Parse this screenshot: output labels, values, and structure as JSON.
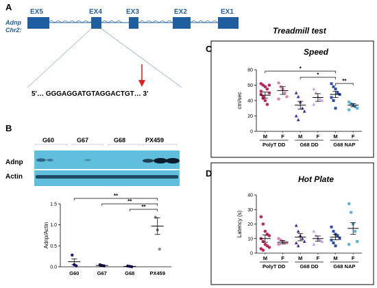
{
  "panels": {
    "A": {
      "label": "A",
      "species": "Adnp",
      "chromosome": "Chr2:",
      "exons": [
        "EX5",
        "EX4",
        "EX3",
        "EX2",
        "EX1"
      ],
      "sequence": "5'… GGGAGGATGTAGGACTGT… 3'",
      "colors": {
        "exon": "#1f5fa0",
        "cut_arrow": "#e02020"
      }
    },
    "B": {
      "label": "B",
      "blot_groups": [
        "G60",
        "G67",
        "G68",
        "PX459"
      ],
      "blot_rows": [
        "Adnp",
        "Actin"
      ],
      "colors": {
        "blot": "#6ec6e0"
      }
    },
    "C": {
      "label": "C",
      "heading": "Treadmill test"
    },
    "D": {
      "label": "D"
    }
  },
  "chart_data": [
    {
      "type": "scatter",
      "title": "",
      "ylabel": "Adnp/Actin",
      "ylim": [
        0.0,
        1.5
      ],
      "yticks": [
        "0.0",
        "0.5",
        "1.0",
        "1.5"
      ],
      "categories": [
        "G60",
        "G67",
        "G68",
        "PX459"
      ],
      "means": [
        0.12,
        0.03,
        0.01,
        0.97
      ],
      "sem": [
        0.07,
        0.02,
        0.01,
        0.2
      ],
      "points": [
        [
          0.28,
          0.05,
          0.02
        ],
        [
          0.05,
          0.03,
          0.02
        ],
        [
          0.02,
          0.01,
          0.0
        ],
        [
          1.18,
          0.88,
          0.42
        ]
      ],
      "significance": [
        {
          "from": "G60",
          "to": "PX459",
          "label": "**"
        },
        {
          "from": "G67",
          "to": "PX459",
          "label": "**"
        },
        {
          "from": "G68",
          "to": "PX459",
          "label": "**"
        }
      ],
      "colors": {
        "point": "#1a1a8a",
        "point_px": "#8a8a8a"
      }
    },
    {
      "type": "scatter",
      "title": "Speed",
      "ylabel": "cm/sec",
      "ylim": [
        0,
        80
      ],
      "yticks": [
        "0",
        "20",
        "40",
        "60",
        "80"
      ],
      "categories": [
        "M",
        "F",
        "M",
        "F",
        "M",
        "F"
      ],
      "groups": [
        "PolyT DD",
        "G68 DD",
        "G68 NAP"
      ],
      "means": [
        47,
        53,
        34,
        44,
        48,
        34
      ],
      "sem": [
        4,
        5,
        5,
        5,
        4,
        2
      ],
      "points": [
        [
          62,
          60,
          58,
          55,
          50,
          48,
          45,
          40,
          35,
          60,
          52,
          43
        ],
        [
          63,
          58,
          55,
          50,
          45,
          42
        ],
        [
          50,
          45,
          38,
          30,
          26,
          20,
          15
        ],
        [
          55,
          50,
          45,
          42,
          40,
          35
        ],
        [
          62,
          58,
          55,
          50,
          48,
          44,
          40,
          30
        ],
        [
          38,
          36,
          34,
          32,
          30,
          28
        ]
      ],
      "significance": [
        {
          "from": 0,
          "to": 4,
          "label": "*",
          "level": 0
        },
        {
          "from": 2,
          "to": 4,
          "label": "*",
          "level": 1
        },
        {
          "from": 4,
          "to": 5,
          "label": "**",
          "level": 2
        }
      ],
      "colors": [
        "#c0245c",
        "#d98ab4",
        "#4b2a9a",
        "#c9a0e0",
        "#2a4ea8",
        "#58b0dc"
      ]
    },
    {
      "type": "scatter",
      "title": "Hot Plate",
      "ylabel": "Latency (s)",
      "ylim": [
        0,
        40
      ],
      "yticks": [
        "0",
        "10",
        "20",
        "30",
        "40"
      ],
      "categories": [
        "M",
        "F",
        "M",
        "F",
        "M",
        "F"
      ],
      "groups": [
        "PolyT DD",
        "G68 DD",
        "G68 NAP"
      ],
      "means": [
        10,
        7.5,
        11,
        10,
        11,
        17
      ],
      "sem": [
        2.5,
        1.2,
        2.5,
        1.8,
        1.8,
        4
      ],
      "points": [
        [
          25,
          20,
          15,
          13,
          12,
          10,
          8,
          6,
          5,
          4,
          3,
          2
        ],
        [
          10,
          9,
          8,
          7,
          7,
          6
        ],
        [
          19,
          15,
          12,
          10,
          8,
          7,
          5
        ],
        [
          15,
          12,
          10,
          9,
          8,
          6
        ],
        [
          18,
          15,
          13,
          12,
          10,
          9,
          7,
          5
        ],
        [
          34,
          28,
          20,
          15,
          8,
          6
        ]
      ],
      "colors": [
        "#c0245c",
        "#d98ab4",
        "#4b2a9a",
        "#c9a0e0",
        "#2a4ea8",
        "#58b0dc"
      ]
    }
  ]
}
